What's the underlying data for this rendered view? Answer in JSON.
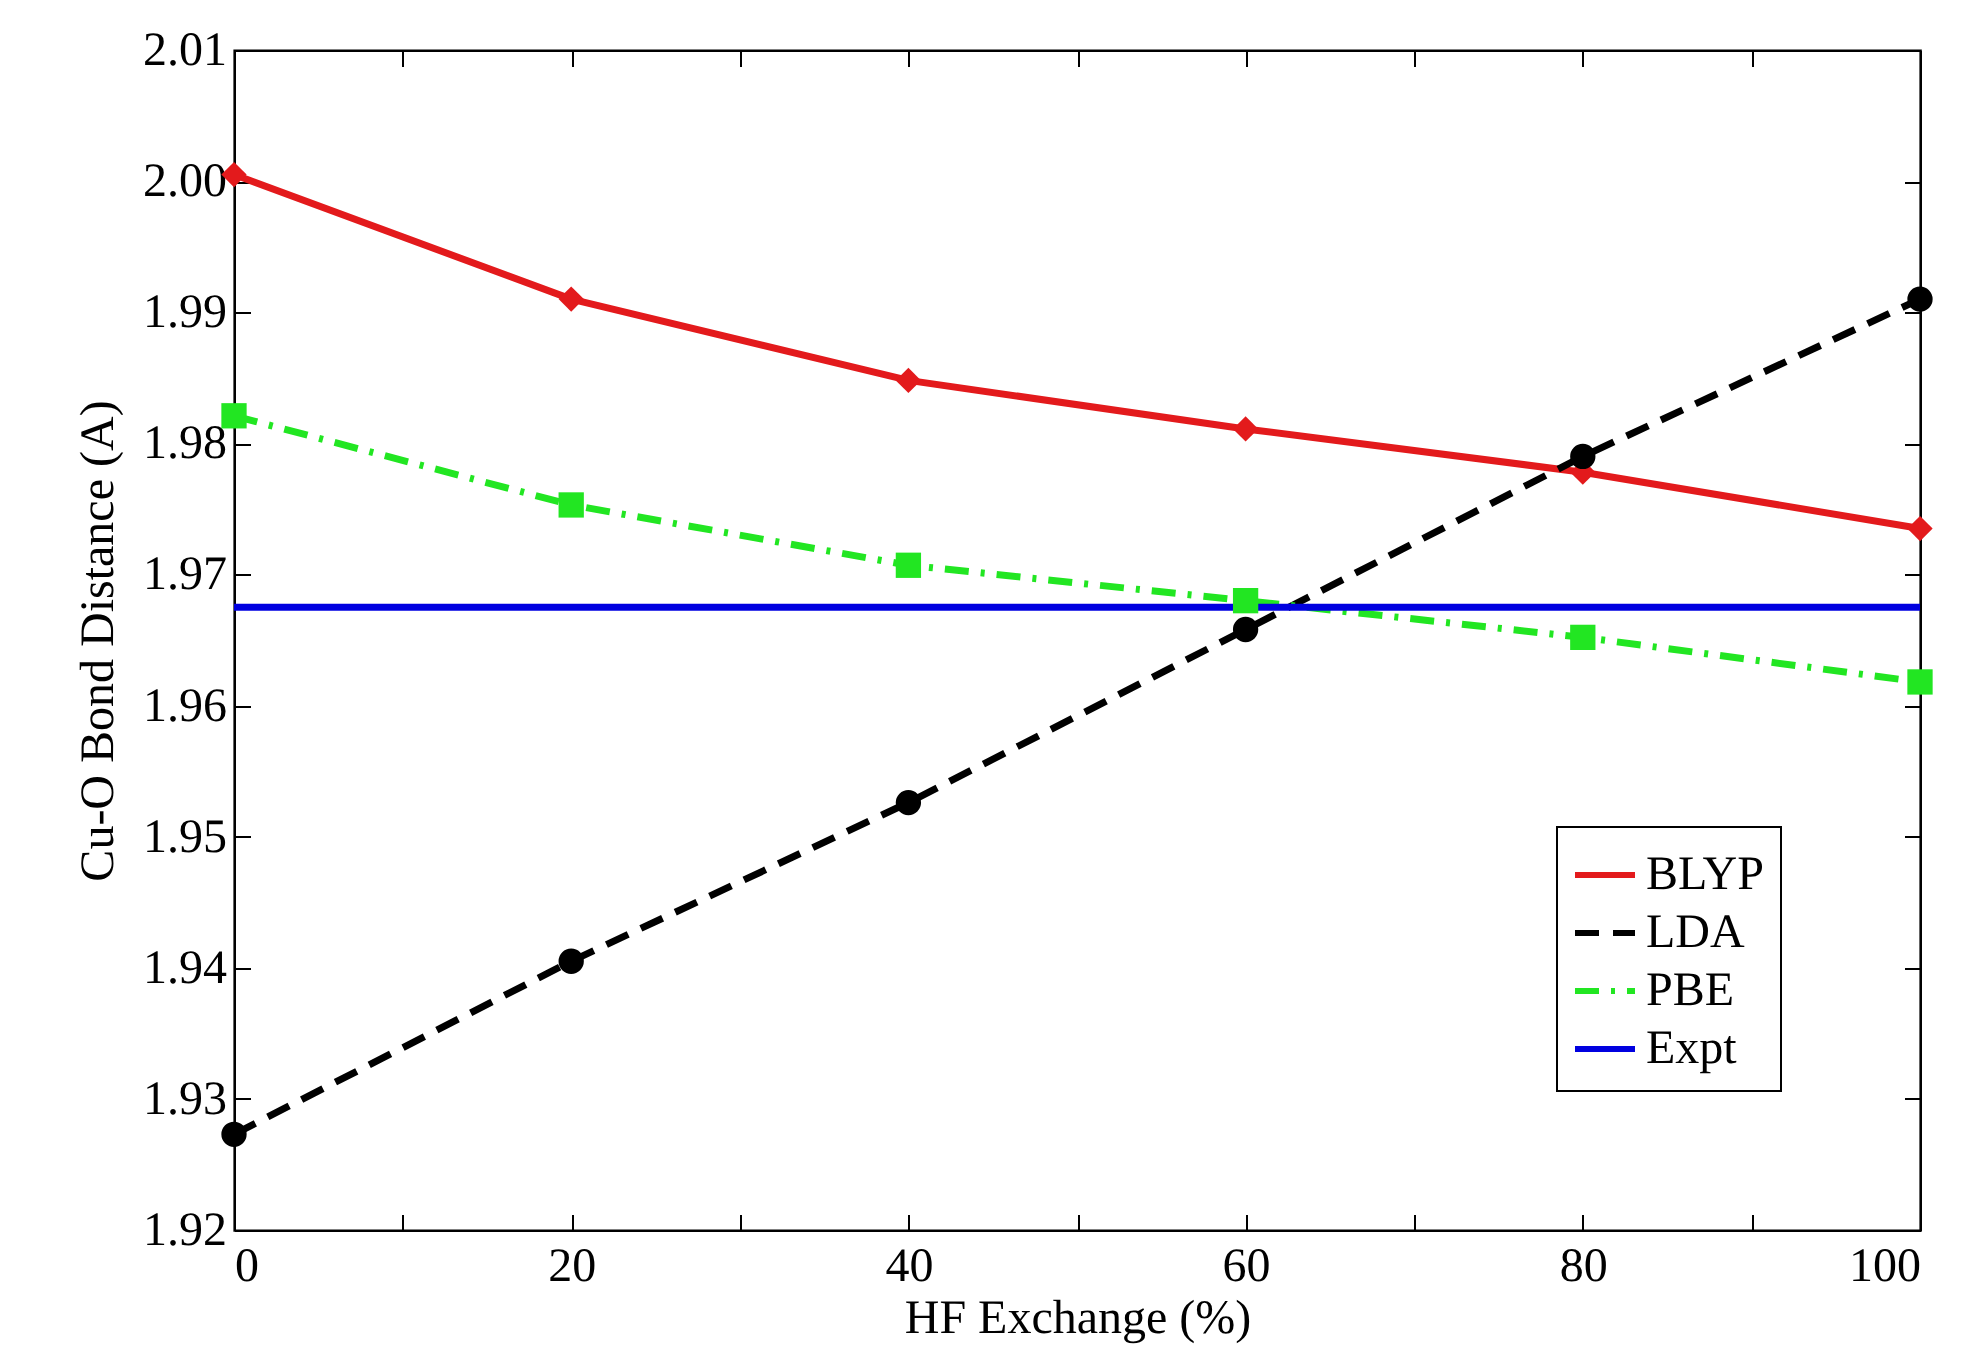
{
  "chart_data": {
    "type": "line",
    "xlabel": "HF Exchange (%)",
    "ylabel": "Cu-O Bond Distance (A)",
    "x": [
      0,
      20,
      40,
      60,
      80,
      100
    ],
    "series": [
      {
        "name": "BLYP",
        "color": "#e31a1c",
        "marker": "diamond",
        "line_style": "solid",
        "values": [
          2.0005,
          1.991,
          1.9848,
          1.9811,
          1.9778,
          1.9735
        ]
      },
      {
        "name": "LDA",
        "color": "#000000",
        "marker": "circle",
        "line_style": "dashed",
        "values": [
          1.9273,
          1.9405,
          1.9526,
          1.9658,
          1.979,
          1.991
        ]
      },
      {
        "name": "PBE",
        "color": "#22e622",
        "marker": "square",
        "line_style": "dashdot",
        "values": [
          1.9821,
          1.9753,
          1.9707,
          1.968,
          1.9652,
          1.9618
        ]
      },
      {
        "name": "Expt",
        "color": "#0000e0",
        "marker": "none",
        "line_style": "solid",
        "x": [
          0,
          100
        ],
        "values": [
          1.9675,
          1.9675
        ]
      }
    ],
    "xlim": [
      0,
      100
    ],
    "xticks": [
      0,
      {
        "value": 10,
        "label": null
      },
      20,
      {
        "value": 30,
        "label": null
      },
      40,
      {
        "value": 50,
        "label": null
      },
      60,
      {
        "value": 70,
        "label": null
      },
      80,
      {
        "value": 90,
        "label": null
      },
      100
    ],
    "ylim": [
      1.92,
      2.01
    ],
    "yticks": [
      1.92,
      1.93,
      1.94,
      1.95,
      1.96,
      1.97,
      1.98,
      1.99,
      {
        "value": 2,
        "label": "2.00"
      },
      2.01
    ],
    "grid": false,
    "legend": "bottom right"
  }
}
